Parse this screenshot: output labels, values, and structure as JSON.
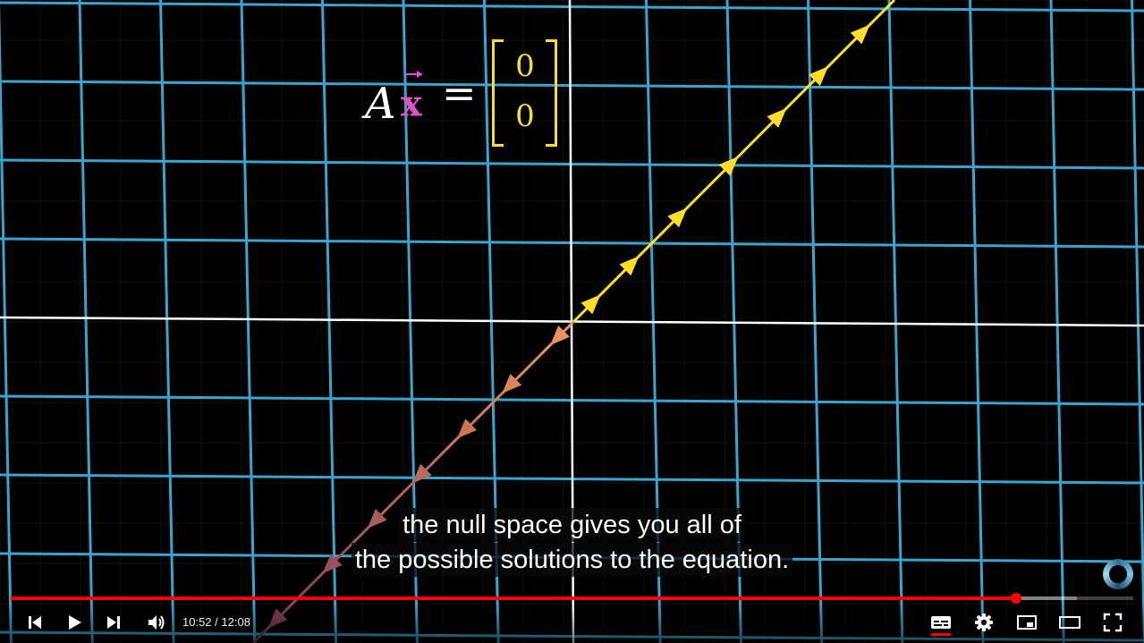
{
  "equation": {
    "lhs_matrix": "A",
    "lhs_vector": "x",
    "equals": "=",
    "rhs_entries": [
      "0",
      "0"
    ],
    "vector_color": "#e052c8",
    "bracket_color": "#f7dc3a"
  },
  "captions": {
    "line1": "the null space gives you all of",
    "line2": "the possible solutions to the equation."
  },
  "player": {
    "current_time": "10:52",
    "separator": " / ",
    "duration": "12:08",
    "played_fraction": 0.896,
    "loaded_fraction": 0.95,
    "accent_color": "#ff0000",
    "icons": [
      "previous-icon",
      "play-icon",
      "next-icon",
      "volume-icon",
      "subtitles-icon",
      "settings-icon",
      "miniplayer-icon",
      "theater-mode-icon",
      "fullscreen-icon"
    ]
  },
  "scene_colors": {
    "grid": "#3aa4d0",
    "axes": "#ffffff",
    "null_space_positive": "#ffde2a",
    "null_space_negative": "#e87a6e"
  }
}
